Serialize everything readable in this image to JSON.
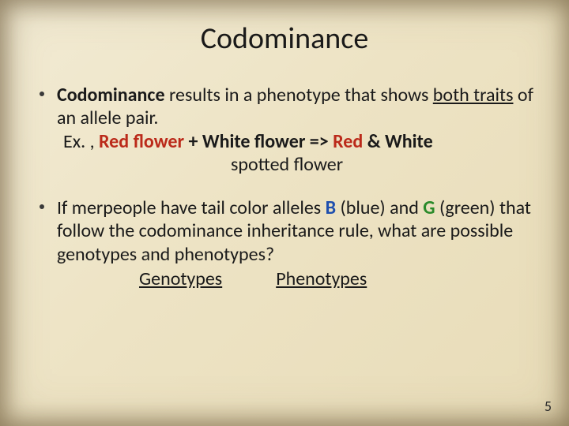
{
  "colors": {
    "background_gradient": [
      "#f2ebd4",
      "#ede3c4",
      "#e8dcb8"
    ],
    "text": "#1a1a1a",
    "bullet": "#3a3a3a",
    "red": "#bb2a1a",
    "blue": "#1e4fae",
    "green": "#2a8a2a",
    "vignette": "rgba(90,70,40,0.25)"
  },
  "typography": {
    "family": "Calibri",
    "title_size_pt": 28,
    "body_size_pt": 18,
    "page_num_size_pt": 14
  },
  "slide": {
    "title": "Codominance",
    "page_number": "5",
    "bullets": [
      {
        "lead_bold": "Codominance",
        "text_after_lead": " results in a phenotype that shows ",
        "underlined_phrase": "both traits",
        "text_after_underline": " of an allele pair.",
        "example": {
          "prefix": "Ex. , ",
          "red_flower": "Red flower",
          "plus": " + ",
          "white_flower": "White flower",
          "arrow": " => ",
          "red_word": "Red",
          "amp": " & ",
          "white_word": "White",
          "spotted": "spotted flower"
        }
      },
      {
        "q_p1": "If merpeople have tail color alleles ",
        "allele_B": "B",
        "q_p2": " (blue) and ",
        "allele_G": "G",
        "q_p3": " (green) that follow the codominance inheritance rule, what are possible genotypes and phenotypes?",
        "col_genotypes": "Genotypes",
        "col_phenotypes": "Phenotypes"
      }
    ]
  }
}
